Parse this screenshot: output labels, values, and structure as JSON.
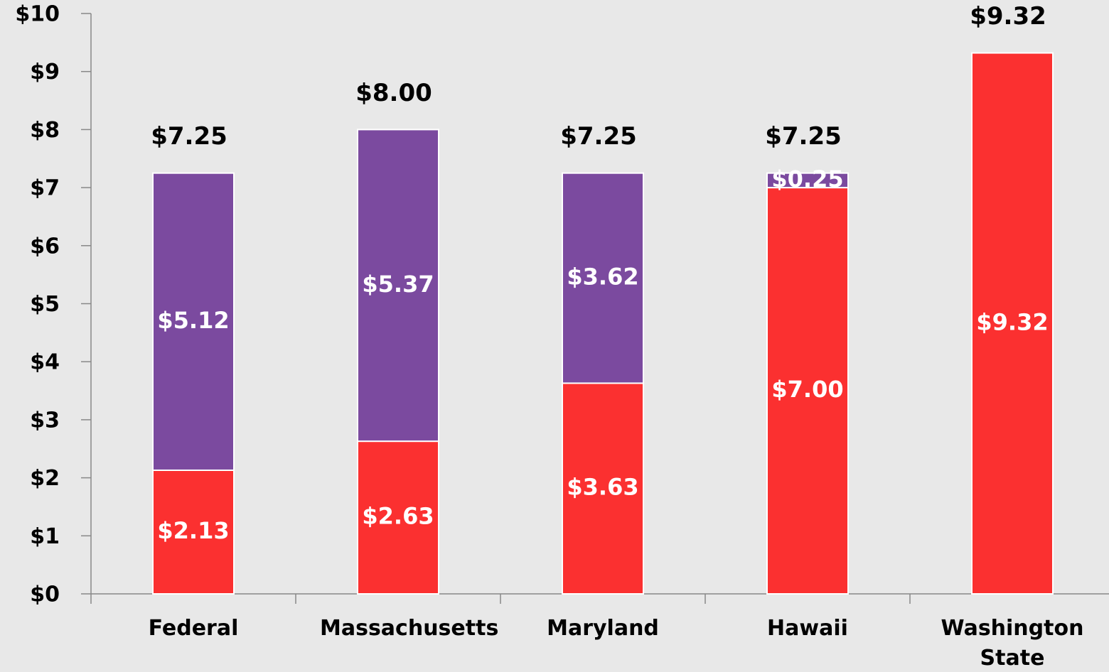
{
  "chart_data": {
    "type": "stacked_bar",
    "categories": [
      "Federal",
      "Massachusetts",
      "Maryland",
      "Hawaii",
      "Washington State"
    ],
    "series": [
      {
        "color": "#fb3030",
        "values": [
          2.13,
          2.63,
          3.63,
          7.0,
          9.32
        ],
        "value_labels": [
          "$2.13",
          "$2.63",
          "$3.63",
          "$7.00",
          "$9.32"
        ]
      },
      {
        "color": "#7b4a9f",
        "values": [
          5.12,
          5.37,
          3.62,
          0.25,
          null
        ],
        "value_labels": [
          "$5.12",
          "$5.37",
          "$3.62",
          "$0.25",
          null
        ]
      }
    ],
    "total_labels": [
      "$7.25",
      "$8.00",
      "$7.25",
      "$7.25",
      "$9.32"
    ],
    "ylim": [
      0,
      10
    ],
    "yticks": [
      {
        "value": 0,
        "label": "$0"
      },
      {
        "value": 1,
        "label": "$1"
      },
      {
        "value": 2,
        "label": "$2"
      },
      {
        "value": 3,
        "label": "$3"
      },
      {
        "value": 4,
        "label": "$4"
      },
      {
        "value": 5,
        "label": "$5"
      },
      {
        "value": 6,
        "label": "$6"
      },
      {
        "value": 7,
        "label": "$7"
      },
      {
        "value": 8,
        "label": "$8"
      },
      {
        "value": 9,
        "label": "$9"
      },
      {
        "value": 10,
        "label": "$10"
      }
    ],
    "grid": false
  }
}
